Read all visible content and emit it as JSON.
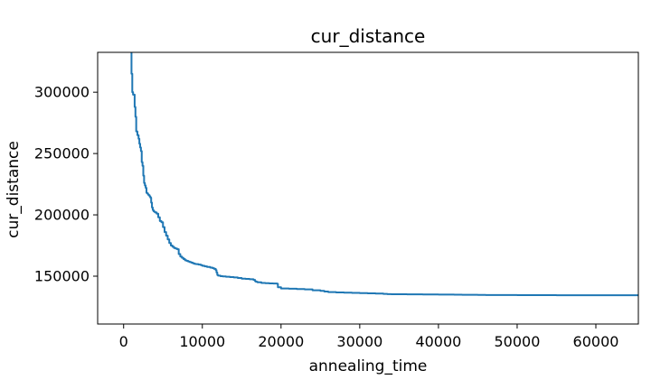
{
  "chart_data": {
    "type": "line",
    "title": "cur_distance",
    "xlabel": "annealing_time",
    "ylabel": "cur_distance",
    "xlim": [
      -3300,
      65400
    ],
    "ylim": [
      111000,
      332500
    ],
    "xticks": [
      0,
      10000,
      20000,
      30000,
      40000,
      50000,
      60000
    ],
    "yticks": [
      150000,
      200000,
      250000,
      300000
    ],
    "xtick_labels": [
      "0",
      "10000",
      "20000",
      "30000",
      "40000",
      "50000",
      "60000"
    ],
    "ytick_labels": [
      "150000",
      "200000",
      "250000",
      "300000"
    ],
    "grid": false,
    "legend": "none",
    "series_color": "#1f77b4",
    "series": [
      {
        "x": [
          900,
          1000,
          1100,
          1200,
          1400,
          1500,
          1600,
          1750,
          1900,
          2000,
          2100,
          2200,
          2300,
          2400,
          2500,
          2600,
          2700,
          2800,
          2900,
          3000,
          3100,
          3200,
          3300,
          3400,
          3500,
          3600,
          3700,
          3800,
          3900,
          4000,
          4200,
          4400,
          4600,
          4800,
          5000,
          5200,
          5400,
          5600,
          5800,
          6000,
          6200,
          6400,
          6600,
          6800,
          7000,
          7200,
          7400,
          7600,
          7800,
          8000,
          8200,
          8400,
          8600,
          8800,
          9000,
          9200,
          9500,
          9800,
          10000,
          10300,
          10600,
          11000,
          11300,
          11500,
          11700,
          11800,
          11900,
          12000,
          12300,
          12600,
          13000,
          13500,
          14000,
          14500,
          15000,
          15500,
          16000,
          16500,
          16700,
          16800,
          17000,
          17500,
          18000,
          18500,
          19000,
          19500,
          19600,
          20000,
          21000,
          22000,
          23000,
          24000,
          25000,
          25500,
          26000,
          27000,
          28000,
          29000,
          30000,
          31000,
          32000,
          33000,
          33500,
          34000,
          36000,
          38000,
          40000,
          42000,
          43000,
          45000,
          46000,
          50000,
          55000,
          60000,
          65400
        ],
        "y": [
          332500,
          315000,
          300000,
          298000,
          288000,
          280000,
          268000,
          265000,
          262000,
          258000,
          255000,
          252000,
          243000,
          240000,
          232000,
          226000,
          224000,
          222000,
          218000,
          217500,
          216500,
          216000,
          215000,
          214000,
          210000,
          206000,
          204000,
          203000,
          202500,
          202000,
          201000,
          198000,
          195000,
          194000,
          190000,
          186000,
          183000,
          180000,
          177000,
          175000,
          174000,
          173000,
          172500,
          172000,
          168000,
          166000,
          165000,
          164000,
          163000,
          162500,
          162000,
          161500,
          161000,
          160500,
          160000,
          159800,
          159500,
          159000,
          158500,
          158000,
          157500,
          157000,
          156500,
          156000,
          155000,
          153000,
          151000,
          150500,
          150000,
          149800,
          149500,
          149300,
          149000,
          148500,
          148000,
          147800,
          147500,
          147000,
          146000,
          145500,
          145000,
          144500,
          144300,
          144100,
          144000,
          143800,
          141000,
          140000,
          139800,
          139500,
          139200,
          138500,
          138000,
          137500,
          137000,
          136800,
          136600,
          136400,
          136200,
          136000,
          135800,
          135600,
          135400,
          135300,
          135200,
          135100,
          135000,
          134900,
          134800,
          134700,
          134600,
          134550,
          134500,
          134450,
          134400
        ]
      }
    ]
  }
}
